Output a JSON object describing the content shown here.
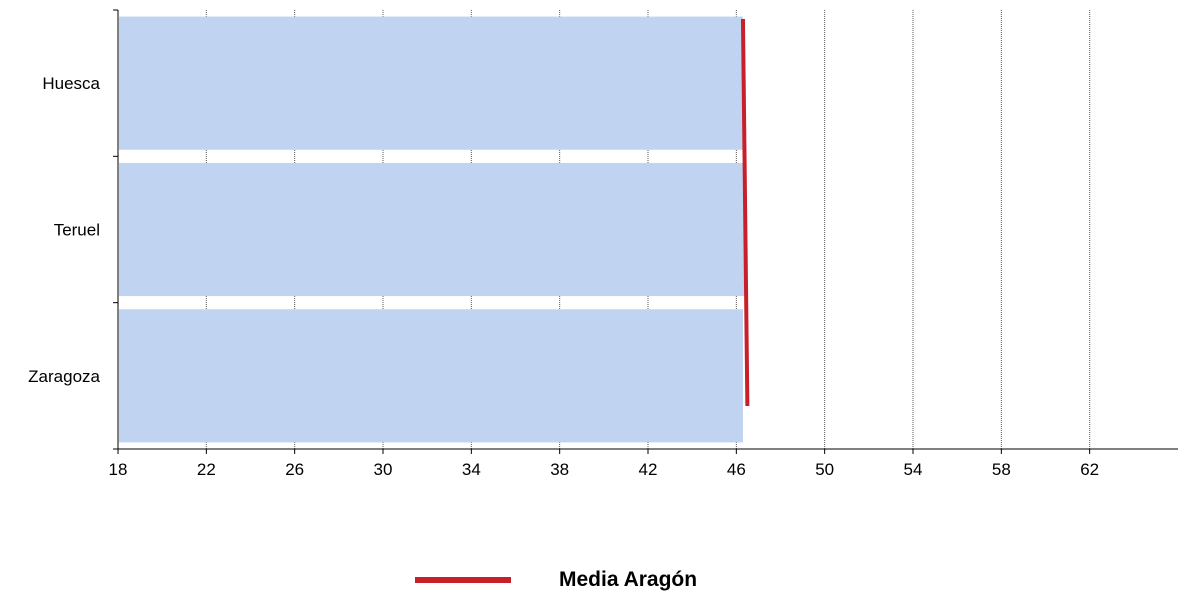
{
  "chart_data": {
    "type": "bar",
    "orientation": "horizontal",
    "categories": [
      "Huesca",
      "Teruel",
      "Zaragoza"
    ],
    "values": [
      46.3,
      46.4,
      46.3
    ],
    "reference_line": {
      "name": "Media Aragón",
      "start": 46.3,
      "end": 46.5,
      "color": "#c8202a"
    },
    "xlim": [
      18,
      66
    ],
    "xticks": [
      "18",
      "22",
      "26",
      "30",
      "34",
      "38",
      "42",
      "46",
      "50",
      "54",
      "58",
      "62"
    ],
    "grid": "vertical dotted",
    "legend_position": "bottom-center",
    "bar_color": "#c0d4f2",
    "title": "",
    "xlabel": "",
    "ylabel": ""
  },
  "legend": {
    "label": "Media Aragón"
  }
}
